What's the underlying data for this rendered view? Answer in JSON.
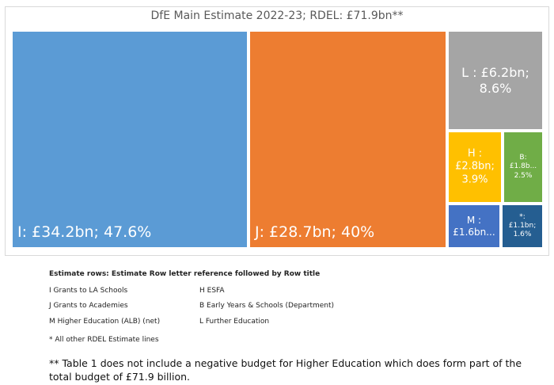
{
  "chart_data": {
    "type": "treemap",
    "title": "DfE Main Estimate 2022-23; RDEL: £71.9bn**",
    "items": [
      {
        "key": "I",
        "value": 34.2,
        "share": 47.6,
        "label": "I: £34.2bn; 47.6%",
        "color": "#5B9BD5"
      },
      {
        "key": "J",
        "value": 28.7,
        "share": 40,
        "label": "J: £28.7bn; 40%",
        "color": "#ED7D31"
      },
      {
        "key": "L",
        "value": 6.2,
        "share": 8.6,
        "label": "L : £6.2bn;\n8.6%",
        "color": "#A5A5A5"
      },
      {
        "key": "H",
        "value": 2.8,
        "share": 3.9,
        "label": "H :\n£2.8bn;\n3.9%",
        "color": "#FFC000"
      },
      {
        "key": "B",
        "value": 1.8,
        "share": 2.5,
        "label": "B:\n£1.8b...\n2.5%",
        "color": "#70AD47"
      },
      {
        "key": "M",
        "value": 1.6,
        "label": "M :\n£1.6bn...",
        "color": "#4472C4"
      },
      {
        "key": "*",
        "value": 1.1,
        "share": 1.6,
        "label": "*:\n£1.1bn;\n1.6%",
        "color": "#255E91"
      }
    ]
  },
  "legend": {
    "title": "Estimate rows: Estimate Row letter reference followed by Row title",
    "items": [
      "I Grants to LA Schools",
      "H ESFA",
      "J Grants to Academies",
      "B Early Years & Schools (Department)",
      "M Higher Education (ALB) (net)",
      "L Further Education"
    ]
  },
  "footnotes": {
    "star": "* All other RDEL Estimate lines",
    "double": "** Table 1 does not include a negative budget for Higher Education which does form part of the total budget of £71.9 billion."
  }
}
